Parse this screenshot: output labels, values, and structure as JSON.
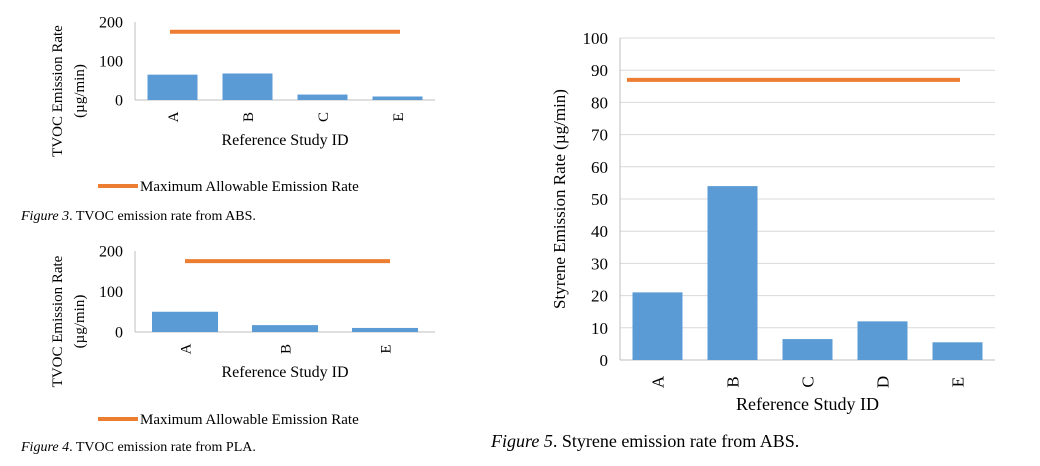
{
  "chart_data": [
    {
      "id": "fig3",
      "type": "bar",
      "categories": [
        "A",
        "B",
        "C",
        "E"
      ],
      "series": [
        {
          "values": [
            65,
            68,
            14,
            9
          ]
        }
      ],
      "reference_line": {
        "name": "Maximum Allowable Emission Rate",
        "value": 175,
        "color": "#ED7D31"
      },
      "bar_color": "#5B9BD5",
      "ylabel": "TVOC Emission Rate (µg/min)",
      "xlabel": "Reference Study ID",
      "yticks": [
        "200",
        "100",
        "0"
      ],
      "ylim": [
        0,
        200
      ],
      "legend": "bottom",
      "caption_prefix": "Figure 3",
      "caption_text": ". TVOC emission rate from ABS."
    },
    {
      "id": "fig4",
      "type": "bar",
      "categories": [
        "A",
        "B",
        "E"
      ],
      "series": [
        {
          "values": [
            50,
            17,
            10
          ]
        }
      ],
      "reference_line": {
        "name": "Maximum Allowable Emission Rate",
        "value": 175,
        "color": "#ED7D31"
      },
      "bar_color": "#5B9BD5",
      "ylabel": "TVOC Emission Rate (µg/min)",
      "xlabel": "Reference Study ID",
      "yticks": [
        "200",
        "100",
        "0"
      ],
      "ylim": [
        0,
        200
      ],
      "legend": "bottom",
      "caption_prefix": "Figure 4",
      "caption_text": ". TVOC emission rate from PLA."
    },
    {
      "id": "fig5",
      "type": "bar",
      "categories": [
        "A",
        "B",
        "C",
        "D",
        "E"
      ],
      "series": [
        {
          "values": [
            21,
            54,
            6.5,
            12,
            5.5
          ]
        }
      ],
      "reference_line": {
        "value": 87,
        "color": "#ED7D31"
      },
      "bar_color": "#5B9BD5",
      "ylabel": "Styrene Emission Rate (µg/min)",
      "xlabel": "Reference Study ID",
      "yticks": [
        "100",
        "90",
        "80",
        "70",
        "60",
        "50",
        "40",
        "30",
        "20",
        "10",
        "0"
      ],
      "ylim": [
        0,
        100
      ],
      "grid": true,
      "caption_prefix": "Figure 5",
      "caption_text": ". Styrene emission rate from ABS."
    }
  ]
}
